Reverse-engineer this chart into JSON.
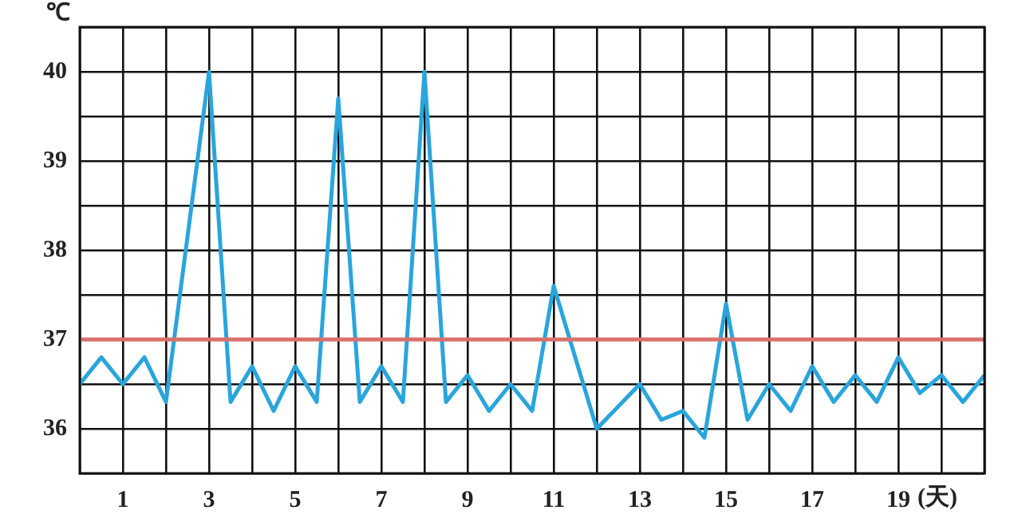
{
  "chart_data": {
    "type": "line",
    "xlabel": "(天)",
    "ylabel": "℃",
    "x": [
      0,
      0.5,
      1,
      1.5,
      2,
      3,
      3.5,
      4,
      4.5,
      5,
      5.5,
      6,
      6.5,
      7,
      7.5,
      8,
      8.5,
      9,
      9.5,
      10,
      10.5,
      11,
      12,
      13,
      13.5,
      14,
      14.5,
      15,
      15.5,
      16,
      16.5,
      17,
      17.5,
      18,
      18.5,
      19,
      19.5,
      20,
      20.5,
      21
    ],
    "series": [
      {
        "color": "#2aa5dc",
        "values": [
          36.5,
          36.8,
          36.5,
          36.8,
          36.3,
          40,
          36.3,
          36.7,
          36.2,
          36.7,
          36.3,
          39.7,
          36.3,
          36.7,
          36.3,
          40,
          36.3,
          36.6,
          36.2,
          36.5,
          36.2,
          37.6,
          36.0,
          36.5,
          36.1,
          36.2,
          35.9,
          37.4,
          36.1,
          36.5,
          36.2,
          36.7,
          36.3,
          36.6,
          36.3,
          36.8,
          36.4,
          36.6,
          36.3,
          36.6
        ]
      }
    ],
    "xlim": [
      0,
      21
    ],
    "xticks": [
      {
        "value": 0,
        "label": null
      },
      1,
      {
        "value": 2,
        "label": null
      },
      3,
      {
        "value": 4,
        "label": null
      },
      5,
      {
        "value": 6,
        "label": null
      },
      7,
      {
        "value": 8,
        "label": null
      },
      9,
      {
        "value": 10,
        "label": null
      },
      11,
      {
        "value": 12,
        "label": null
      },
      13,
      {
        "value": 14,
        "label": null
      },
      15,
      {
        "value": 16,
        "label": null
      },
      17,
      {
        "value": 18,
        "label": null
      },
      19,
      {
        "value": 20,
        "label": null
      },
      {
        "value": 21,
        "label": null
      }
    ],
    "ylim": [
      35.5,
      40.5
    ],
    "yticks": [
      {
        "value": 35.5,
        "label": null
      },
      36,
      {
        "value": 36.5,
        "label": null
      },
      37,
      {
        "value": 37.5,
        "label": null
      },
      38,
      {
        "value": 38.5,
        "label": null
      },
      39,
      {
        "value": 39.5,
        "label": null
      },
      40,
      {
        "value": 40.5,
        "label": null
      }
    ],
    "ref_lines": [
      {
        "axis": "y",
        "value": 37,
        "color": "#d9706c"
      }
    ],
    "grid": true,
    "legend": false,
    "marker": "none",
    "line_style": "solid"
  }
}
